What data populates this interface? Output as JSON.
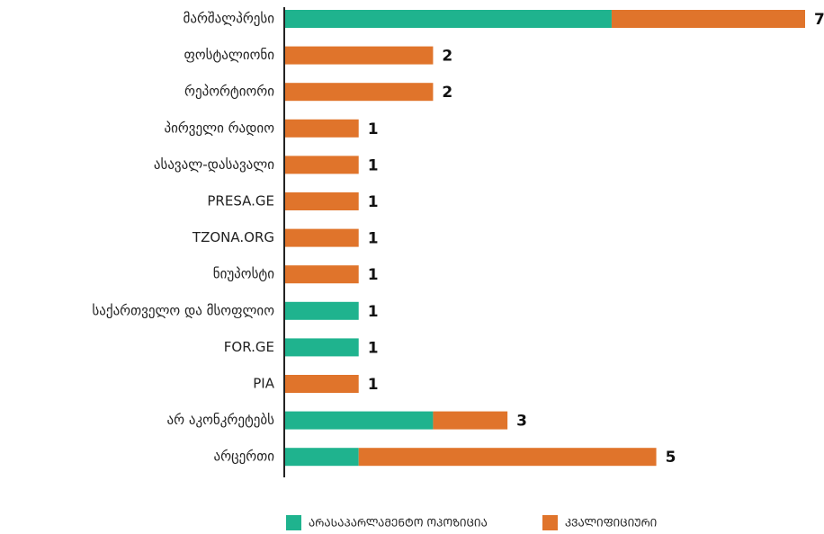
{
  "chart_data": {
    "type": "stacked_bar_horizontal",
    "categories": [
      "მარშალპრესი",
      "ფოსტალიონი",
      "რეპორტიორი",
      "პირველი რადიო",
      "ასავალ-დასავალი",
      "PRESA.GE",
      "TZONA.ORG",
      "ნიუპოსტი",
      "საქართველო და მსოფლიო",
      "FOR.GE",
      "PIA",
      "არ აკონკრეტებს",
      "არცერთი"
    ],
    "series": [
      {
        "name": "ᲐᲠᲐᲡᲐᲞᲐᲠᲚᲐᲛᲔᲜᲢᲝ ᲝᲞᲝᲖᲘᲪᲘᲐ",
        "color": "#1fb38e",
        "values": [
          4.4,
          0,
          0,
          0,
          0,
          0,
          0,
          0,
          1,
          1,
          0,
          2,
          1
        ]
      },
      {
        "name": "ᲙᲕᲐᲚᲘᲤᲘᲪᲘᲣᲠᲘ",
        "color": "#e0742b",
        "values": [
          2.6,
          2,
          2,
          1,
          1,
          1,
          1,
          1,
          0,
          0,
          1,
          1,
          4
        ]
      }
    ],
    "totals": [
      7,
      2,
      2,
      1,
      1,
      1,
      1,
      1,
      1,
      1,
      1,
      3,
      5
    ],
    "xlim": [
      0,
      7
    ]
  }
}
